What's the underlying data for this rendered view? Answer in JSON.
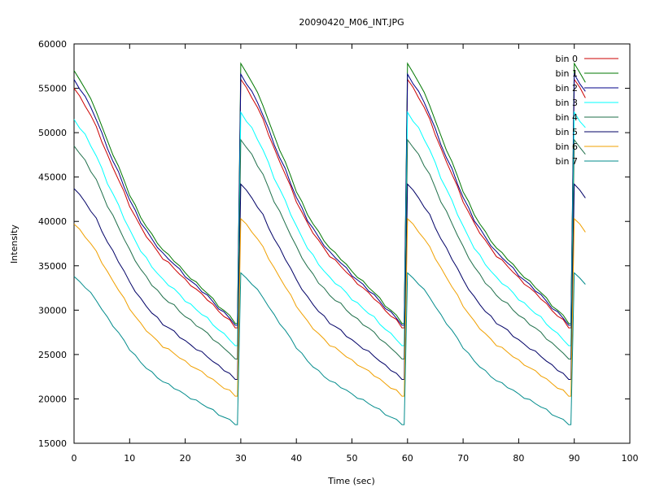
{
  "chart_data": {
    "type": "line",
    "title": "20090420_M06_INT.JPG",
    "xlabel": "Time (sec)",
    "ylabel": "Intensity",
    "xlim": [
      0,
      100
    ],
    "ylim": [
      15000,
      60000
    ],
    "xticks": [
      "0",
      "10",
      "20",
      "30",
      "40",
      "50",
      "60",
      "70",
      "80",
      "90",
      "100"
    ],
    "yticks": [
      "15000",
      "20000",
      "25000",
      "30000",
      "35000",
      "40000",
      "45000",
      "50000",
      "55000",
      "60000"
    ],
    "grid": false,
    "legend_position": "top-right",
    "sample": {
      "period": 30,
      "cycle_start_x": [
        0,
        30,
        60,
        90
      ],
      "x_end": 92,
      "profile_t": [
        0,
        2,
        4,
        6,
        8,
        10,
        12,
        14,
        16,
        18,
        20,
        22,
        24,
        26,
        28,
        29,
        29.4
      ],
      "profile_fraction": [
        1.0,
        0.93,
        0.84,
        0.72,
        0.62,
        0.51,
        0.42,
        0.35,
        0.29,
        0.25,
        0.2,
        0.16,
        0.12,
        0.07,
        0.03,
        0.0,
        0.0
      ]
    },
    "series": [
      {
        "name": "bin 0",
        "color": "#cc0000",
        "start_first": 55000,
        "start_peak": 56000,
        "end": 28000
      },
      {
        "name": "bin 1",
        "color": "#007700",
        "start_first": 57000,
        "start_peak": 57800,
        "end": 28500
      },
      {
        "name": "bin 2",
        "color": "#000088",
        "start_first": 56000,
        "start_peak": 56600,
        "end": 28300
      },
      {
        "name": "bin 3",
        "color": "#00ffff",
        "start_first": 51500,
        "start_peak": 52300,
        "end": 26000
      },
      {
        "name": "bin 4",
        "color": "#1f6f4a",
        "start_first": 48500,
        "start_peak": 49200,
        "end": 24500
      },
      {
        "name": "bin 5",
        "color": "#000066",
        "start_first": 43700,
        "start_peak": 44200,
        "end": 22200
      },
      {
        "name": "bin 6",
        "color": "#f0a000",
        "start_first": 39700,
        "start_peak": 40300,
        "end": 20300
      },
      {
        "name": "bin 7",
        "color": "#008b8b",
        "start_first": 33800,
        "start_peak": 34200,
        "end": 17100
      }
    ]
  }
}
